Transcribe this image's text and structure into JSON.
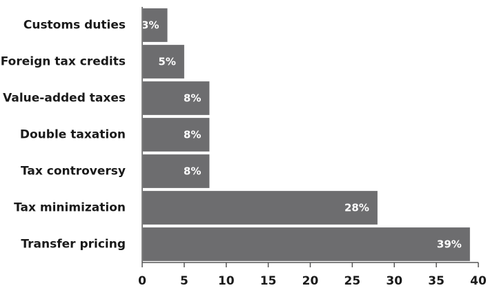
{
  "chart_data": {
    "type": "bar",
    "orientation": "horizontal",
    "title": "",
    "xlabel": "",
    "ylabel": "",
    "categories": [
      "Customs duties",
      "Foreign tax credits",
      "Value-added taxes",
      "Double taxation",
      "Tax controversy",
      "Tax minimization",
      "Transfer pricing"
    ],
    "values": [
      3,
      5,
      8,
      8,
      8,
      28,
      39
    ],
    "data_labels": [
      "3%",
      "5%",
      "8%",
      "8%",
      "8%",
      "28%",
      "39%"
    ],
    "xlim": [
      0,
      40
    ],
    "xticks": [
      0,
      5,
      10,
      15,
      20,
      25,
      30,
      35,
      40
    ],
    "xtick_labels": [
      "0",
      "5",
      "10",
      "15",
      "20",
      "25",
      "30",
      "35",
      "40"
    ],
    "grid": false,
    "legend": "none",
    "bar_color": "#6d6d6f",
    "label_color": "#ffffff"
  }
}
